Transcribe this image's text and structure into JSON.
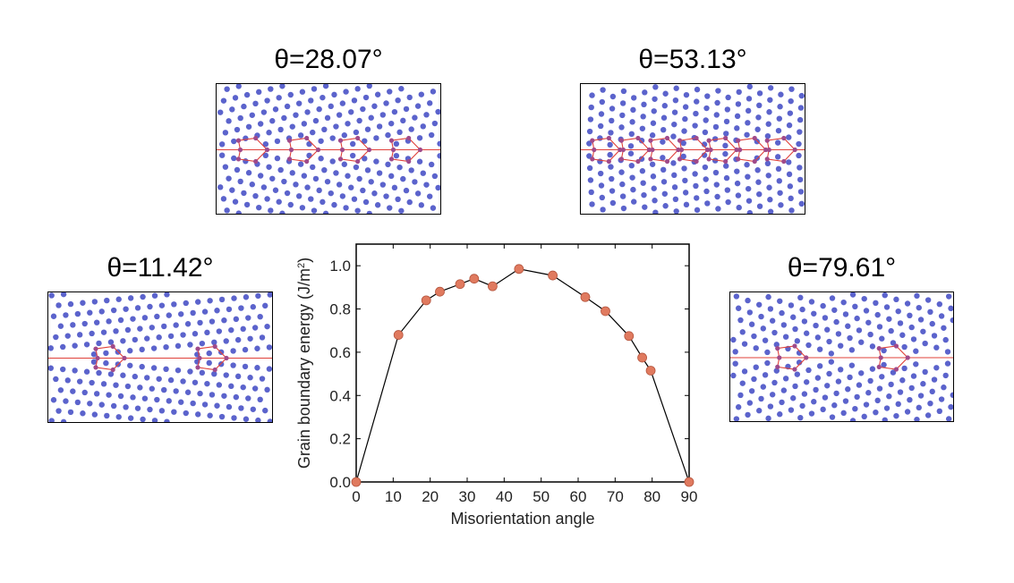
{
  "insets": [
    {
      "label": "θ=28.07°",
      "angle": 28.07,
      "structure_units": 4
    },
    {
      "label": "θ=53.13°",
      "angle": 53.13,
      "structure_units": 7
    },
    {
      "label": "θ=11.42°",
      "angle": 11.42,
      "structure_units": 2
    },
    {
      "label": "θ=79.61°",
      "angle": 79.61,
      "structure_units": 2
    }
  ],
  "colors": {
    "atom": "#5b63cc",
    "boundary": "#e0413a",
    "boundary_atom": "#a04a8a",
    "marker": "#e07a5f",
    "line": "#000000"
  },
  "chart_data": {
    "type": "line",
    "xlabel": "Misorientation angle",
    "ylabel": "Grain boundary energy (J/m",
    "ylabel_sup": "2",
    "ylabel_end": ")",
    "xlim": [
      0,
      90
    ],
    "ylim": [
      0,
      1.1
    ],
    "xticks": [
      0,
      10,
      20,
      30,
      40,
      50,
      60,
      70,
      80,
      90
    ],
    "yticks": [
      "0.0",
      "0.2",
      "0.4",
      "0.6",
      "0.8",
      "1.0"
    ],
    "x": [
      0,
      11.42,
      18.92,
      22.62,
      28.07,
      31.89,
      36.87,
      44.0,
      53.13,
      61.93,
      67.38,
      73.74,
      77.32,
      79.61,
      90
    ],
    "y": [
      0.0,
      0.68,
      0.84,
      0.88,
      0.915,
      0.94,
      0.905,
      0.985,
      0.955,
      0.855,
      0.79,
      0.675,
      0.575,
      0.515,
      0.0
    ],
    "grid": false
  }
}
